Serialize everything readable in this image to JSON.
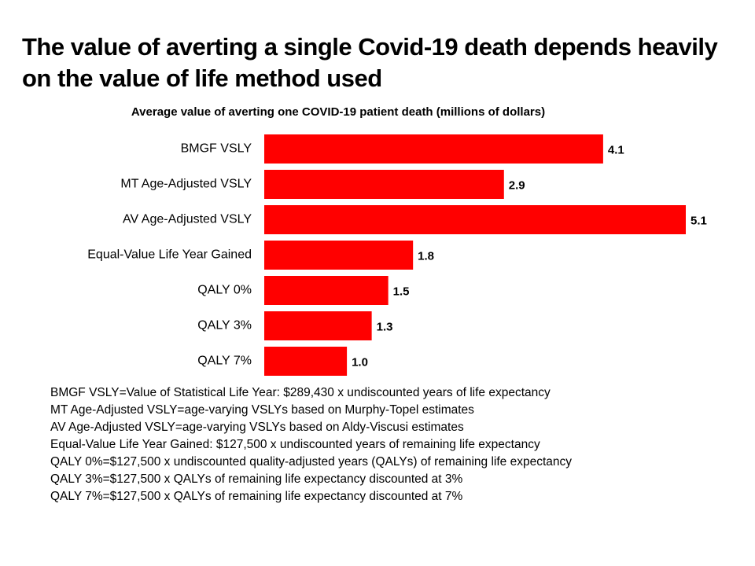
{
  "chart_data": {
    "type": "bar",
    "orientation": "horizontal",
    "title": "The value of averting a single Covid-19 death depends heavily on the value of life method used",
    "subtitle": "Average value of averting one COVID-19 patient death (millions of dollars)",
    "categories": [
      "BMGF VSLY",
      "MT Age-Adjusted VSLY",
      "AV Age-Adjusted VSLY",
      "Equal-Value Life Year Gained",
      "QALY 0%",
      "QALY 3%",
      "QALY 7%"
    ],
    "values": [
      4.1,
      2.9,
      5.1,
      1.8,
      1.5,
      1.3,
      1.0
    ],
    "value_labels": [
      "4.1",
      "2.9",
      "5.1",
      "1.8",
      "1.5",
      "1.3",
      "1.0"
    ],
    "color": "#ff0000",
    "notes": [
      "BMGF VSLY=Value of Statistical Life Year: $289,430 x undiscounted years of life expectancy",
      "MT Age-Adjusted VSLY=age-varying VSLYs based on Murphy-Topel estimates",
      "AV Age-Adjusted VSLY=age-varying VSLYs based on Aldy-Viscusi estimates",
      "Equal-Value Life Year Gained: $127,500 x undiscounted years of remaining life expectancy",
      "QALY 0%=$127,500 x undiscounted quality-adjusted years (QALYs) of remaining life expectancy",
      "QALY 3%=$127,500 x QALYs of remaining life expectancy discounted at 3%",
      "QALY 7%=$127,500 x QALYs of remaining life expectancy discounted at 7%"
    ]
  }
}
